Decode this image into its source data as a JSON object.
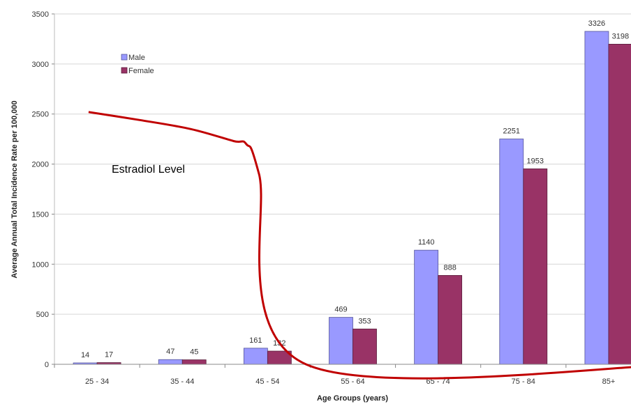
{
  "chart_data": {
    "type": "bar",
    "categories": [
      "25 - 34",
      "35 - 44",
      "45 - 54",
      "55 - 64",
      "65 - 74",
      "75 - 84",
      "85+"
    ],
    "series": [
      {
        "name": "Male",
        "values": [
          14,
          47,
          161,
          469,
          1140,
          2251,
          3326
        ],
        "color": "#9999ff",
        "edge": "#555599"
      },
      {
        "name": "Female",
        "values": [
          17,
          45,
          132,
          353,
          888,
          1953,
          3198
        ],
        "color": "#993366",
        "edge": "#5a1e3c"
      }
    ],
    "data_labels": {
      "Male": [
        "14",
        "47",
        "161",
        "469",
        "1140",
        "2251",
        "3326"
      ],
      "Female": [
        "17",
        "45",
        "132",
        "353",
        "888",
        "1953",
        "3198"
      ]
    },
    "xlabel": "Age Groups (years)",
    "ylabel": "Average Annual Total Incidence Rate per 100,000",
    "ylim": [
      0,
      3500
    ],
    "yticks": [
      0,
      500,
      1000,
      1500,
      2000,
      2500,
      3000,
      3500
    ],
    "ytick_labels": [
      "0",
      "500",
      "1000",
      "1500",
      "2000",
      "2500",
      "3000",
      "3500"
    ],
    "grid": true,
    "legend_placement": "top-left",
    "overlay": {
      "label": "Estradiol Level",
      "color": "#c00000",
      "points": [
        [
          -0.1,
          2520
        ],
        [
          0.5,
          2440
        ],
        [
          1.1,
          2350
        ],
        [
          1.6,
          2230
        ],
        [
          1.75,
          2200
        ],
        [
          1.9,
          1900
        ],
        [
          2.45,
          0
        ],
        [
          6.9,
          0
        ]
      ]
    }
  }
}
